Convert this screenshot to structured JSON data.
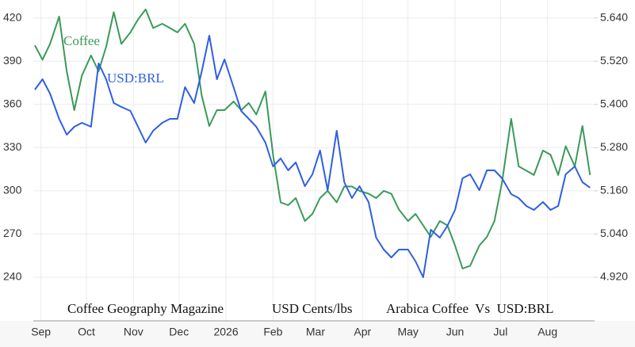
{
  "chart_data": {
    "type": "line",
    "annotations": [
      "Coffee Geography Magazine",
      "USD Cents/lbs",
      "Arabica Coffee  Vs  USD:BRL"
    ],
    "x": [
      -4,
      1,
      6,
      12,
      17,
      22,
      27,
      33,
      38,
      43,
      48,
      53,
      59,
      64,
      69,
      74,
      80,
      85,
      90,
      95,
      101,
      106,
      111,
      116,
      121,
      127,
      132,
      137,
      142,
      148,
      153,
      158,
      163,
      168,
      174,
      179,
      184,
      189,
      195,
      200,
      205,
      210,
      216,
      221,
      226,
      231,
      236,
      242,
      247,
      252,
      257,
      263,
      268,
      273,
      278,
      283,
      289,
      294,
      299,
      304,
      310,
      315,
      320,
      325,
      331,
      336,
      341,
      346,
      352,
      357,
      362
    ],
    "xlim": [
      -4,
      365
    ],
    "xticks": [
      {
        "value": 0,
        "label": "Sep"
      },
      {
        "value": 30,
        "label": "Oct"
      },
      {
        "value": 61,
        "label": "Nov"
      },
      {
        "value": 91,
        "label": "Dec"
      },
      {
        "value": 122,
        "label": "2026"
      },
      {
        "value": 153,
        "label": "Feb"
      },
      {
        "value": 181,
        "label": "Mar"
      },
      {
        "value": 212,
        "label": "Apr"
      },
      {
        "value": 242,
        "label": "May"
      },
      {
        "value": 273,
        "label": "Jun"
      },
      {
        "value": 303,
        "label": "Jul"
      },
      {
        "value": 334,
        "label": "Aug"
      }
    ],
    "ylim": [
      210,
      430
    ],
    "yticks": [
      240,
      270,
      300,
      330,
      360,
      390,
      420
    ],
    "y2lim": [
      4.8,
      5.68
    ],
    "y2ticks": [
      {
        "value": 4.92,
        "label": "4.920"
      },
      {
        "value": 5.04,
        "label": "5.040"
      },
      {
        "value": 5.16,
        "label": "5.160"
      },
      {
        "value": 5.28,
        "label": "5.280"
      },
      {
        "value": 5.4,
        "label": "5.400"
      },
      {
        "value": 5.52,
        "label": "5.520"
      },
      {
        "value": 5.64,
        "label": "5.640"
      }
    ],
    "grid": true,
    "series": [
      {
        "name": "Coffee",
        "color": "#3a9a5a",
        "values": [
          401,
          391,
          402,
          421,
          383,
          356,
          380,
          394,
          383,
          400,
          424,
          402,
          410,
          419,
          426,
          413,
          416,
          413,
          410,
          416,
          402,
          366,
          345,
          356,
          356,
          362,
          356,
          361,
          353,
          369,
          325,
          292,
          290,
          295,
          279,
          284,
          295,
          300,
          292,
          303,
          303,
          300,
          298,
          295,
          300,
          298,
          287,
          279,
          284,
          276,
          268,
          279,
          276,
          262,
          246,
          248,
          262,
          268,
          279,
          306,
          350,
          317,
          314,
          311,
          328,
          325,
          311,
          331,
          317,
          345,
          311
        ]
      },
      {
        "name": "USD:BRL",
        "color": "#2f5fe0",
        "axis": "y2",
        "values": [
          5.441,
          5.47,
          5.43,
          5.36,
          5.316,
          5.338,
          5.349,
          5.338,
          5.514,
          5.47,
          5.404,
          5.393,
          5.382,
          5.338,
          5.294,
          5.327,
          5.349,
          5.36,
          5.36,
          5.448,
          5.404,
          5.492,
          5.591,
          5.47,
          5.525,
          5.448,
          5.382,
          5.36,
          5.338,
          5.294,
          5.228,
          5.25,
          5.217,
          5.239,
          5.173,
          5.206,
          5.272,
          5.162,
          5.327,
          5.184,
          5.14,
          5.173,
          5.129,
          5.03,
          4.997,
          4.975,
          4.997,
          4.997,
          4.964,
          4.92,
          5.052,
          5.03,
          5.063,
          5.107,
          5.195,
          5.206,
          5.162,
          5.217,
          5.217,
          5.195,
          5.151,
          5.14,
          5.118,
          5.107,
          5.129,
          5.107,
          5.118,
          5.206,
          5.228,
          5.184,
          5.169
        ]
      }
    ]
  }
}
